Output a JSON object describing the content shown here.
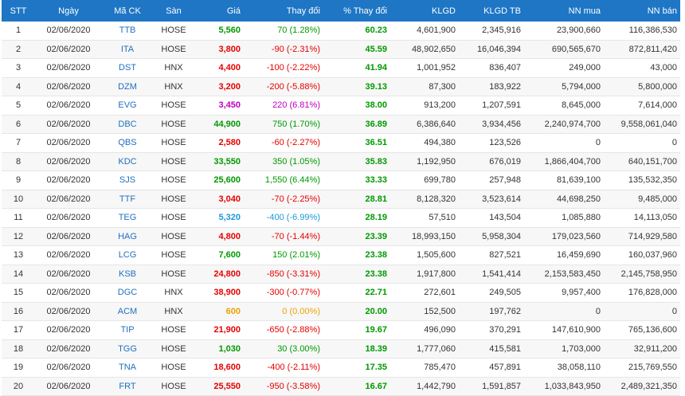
{
  "headers": {
    "stt": "STT",
    "date": "Ngày",
    "symbol": "Mã CK",
    "exchange": "Sàn",
    "price": "Giá",
    "change": "Thay đổi",
    "pct_change": "% Thay đổi",
    "volume": "KLGD",
    "avg_volume": "KLGD TB",
    "foreign_buy": "NN mua",
    "foreign_sell": "NN bán"
  },
  "colors": {
    "header_bg": "#1e76c5",
    "up": "#009900",
    "down": "#e60000",
    "reference": "#f0a100",
    "ceiling": "#c000c0",
    "floor": "#1a9ad6",
    "symbol_link": "#1f6fbf"
  },
  "rows": [
    {
      "stt": "1",
      "date": "02/06/2020",
      "symbol": "TTB",
      "exchange": "HOSE",
      "price": "5,560",
      "change": "70 (1.28%)",
      "trend": "up",
      "pct": "60.23",
      "volume": "4,601,900",
      "avg_volume": "2,345,916",
      "foreign_buy": "23,900,660",
      "foreign_sell": "116,386,530"
    },
    {
      "stt": "2",
      "date": "02/06/2020",
      "symbol": "ITA",
      "exchange": "HOSE",
      "price": "3,800",
      "change": "-90 (-2.31%)",
      "trend": "down",
      "pct": "45.59",
      "volume": "48,902,650",
      "avg_volume": "16,046,394",
      "foreign_buy": "690,565,670",
      "foreign_sell": "872,811,420"
    },
    {
      "stt": "3",
      "date": "02/06/2020",
      "symbol": "DST",
      "exchange": "HNX",
      "price": "4,400",
      "change": "-100 (-2.22%)",
      "trend": "down",
      "pct": "41.94",
      "volume": "1,001,952",
      "avg_volume": "836,407",
      "foreign_buy": "249,000",
      "foreign_sell": "43,000"
    },
    {
      "stt": "4",
      "date": "02/06/2020",
      "symbol": "DZM",
      "exchange": "HNX",
      "price": "3,200",
      "change": "-200 (-5.88%)",
      "trend": "down",
      "pct": "39.13",
      "volume": "87,300",
      "avg_volume": "183,922",
      "foreign_buy": "5,794,000",
      "foreign_sell": "5,800,000"
    },
    {
      "stt": "5",
      "date": "02/06/2020",
      "symbol": "EVG",
      "exchange": "HOSE",
      "price": "3,450",
      "change": "220 (6.81%)",
      "trend": "ceil",
      "pct": "38.00",
      "volume": "913,200",
      "avg_volume": "1,207,591",
      "foreign_buy": "8,645,000",
      "foreign_sell": "7,614,000"
    },
    {
      "stt": "6",
      "date": "02/06/2020",
      "symbol": "DBC",
      "exchange": "HOSE",
      "price": "44,900",
      "change": "750 (1.70%)",
      "trend": "up",
      "pct": "36.89",
      "volume": "6,386,640",
      "avg_volume": "3,934,456",
      "foreign_buy": "2,240,974,700",
      "foreign_sell": "9,558,061,040"
    },
    {
      "stt": "7",
      "date": "02/06/2020",
      "symbol": "QBS",
      "exchange": "HOSE",
      "price": "2,580",
      "change": "-60 (-2.27%)",
      "trend": "down",
      "pct": "36.51",
      "volume": "494,380",
      "avg_volume": "123,526",
      "foreign_buy": "0",
      "foreign_sell": "0"
    },
    {
      "stt": "8",
      "date": "02/06/2020",
      "symbol": "KDC",
      "exchange": "HOSE",
      "price": "33,550",
      "change": "350 (1.05%)",
      "trend": "up",
      "pct": "35.83",
      "volume": "1,192,950",
      "avg_volume": "676,019",
      "foreign_buy": "1,866,404,700",
      "foreign_sell": "640,151,700"
    },
    {
      "stt": "9",
      "date": "02/06/2020",
      "symbol": "SJS",
      "exchange": "HOSE",
      "price": "25,600",
      "change": "1,550 (6.44%)",
      "trend": "up",
      "pct": "33.33",
      "volume": "699,780",
      "avg_volume": "257,948",
      "foreign_buy": "81,639,100",
      "foreign_sell": "135,532,350"
    },
    {
      "stt": "10",
      "date": "02/06/2020",
      "symbol": "TTF",
      "exchange": "HOSE",
      "price": "3,040",
      "change": "-70 (-2.25%)",
      "trend": "down",
      "pct": "28.81",
      "volume": "8,128,320",
      "avg_volume": "3,523,614",
      "foreign_buy": "44,698,250",
      "foreign_sell": "9,485,000"
    },
    {
      "stt": "11",
      "date": "02/06/2020",
      "symbol": "TEG",
      "exchange": "HOSE",
      "price": "5,320",
      "change": "-400 (-6.99%)",
      "trend": "floor",
      "pct": "28.19",
      "volume": "57,510",
      "avg_volume": "143,504",
      "foreign_buy": "1,085,880",
      "foreign_sell": "14,113,050"
    },
    {
      "stt": "12",
      "date": "02/06/2020",
      "symbol": "HAG",
      "exchange": "HOSE",
      "price": "4,800",
      "change": "-70 (-1.44%)",
      "trend": "down",
      "pct": "23.39",
      "volume": "18,993,150",
      "avg_volume": "5,958,304",
      "foreign_buy": "179,023,560",
      "foreign_sell": "714,929,580"
    },
    {
      "stt": "13",
      "date": "02/06/2020",
      "symbol": "LCG",
      "exchange": "HOSE",
      "price": "7,600",
      "change": "150 (2.01%)",
      "trend": "up",
      "pct": "23.38",
      "volume": "1,505,600",
      "avg_volume": "827,521",
      "foreign_buy": "16,459,690",
      "foreign_sell": "160,037,960"
    },
    {
      "stt": "14",
      "date": "02/06/2020",
      "symbol": "KSB",
      "exchange": "HOSE",
      "price": "24,800",
      "change": "-850 (-3.31%)",
      "trend": "down",
      "pct": "23.38",
      "volume": "1,917,800",
      "avg_volume": "1,541,414",
      "foreign_buy": "2,153,583,450",
      "foreign_sell": "2,145,758,950"
    },
    {
      "stt": "15",
      "date": "02/06/2020",
      "symbol": "DGC",
      "exchange": "HNX",
      "price": "38,900",
      "change": "-300 (-0.77%)",
      "trend": "down",
      "pct": "22.71",
      "volume": "272,601",
      "avg_volume": "249,505",
      "foreign_buy": "9,957,400",
      "foreign_sell": "176,828,000"
    },
    {
      "stt": "16",
      "date": "02/06/2020",
      "symbol": "ACM",
      "exchange": "HNX",
      "price": "600",
      "change": "0 (0.00%)",
      "trend": "ref",
      "pct": "20.00",
      "volume": "152,500",
      "avg_volume": "197,762",
      "foreign_buy": "0",
      "foreign_sell": "0"
    },
    {
      "stt": "17",
      "date": "02/06/2020",
      "symbol": "TIP",
      "exchange": "HOSE",
      "price": "21,900",
      "change": "-650 (-2.88%)",
      "trend": "down",
      "pct": "19.67",
      "volume": "496,090",
      "avg_volume": "370,291",
      "foreign_buy": "147,610,900",
      "foreign_sell": "765,136,600"
    },
    {
      "stt": "18",
      "date": "02/06/2020",
      "symbol": "TGG",
      "exchange": "HOSE",
      "price": "1,030",
      "change": "30 (3.00%)",
      "trend": "up",
      "pct": "18.39",
      "volume": "1,777,060",
      "avg_volume": "415,581",
      "foreign_buy": "1,703,000",
      "foreign_sell": "32,911,200"
    },
    {
      "stt": "19",
      "date": "02/06/2020",
      "symbol": "TNA",
      "exchange": "HOSE",
      "price": "18,600",
      "change": "-400 (-2.11%)",
      "trend": "down",
      "pct": "17.35",
      "volume": "785,470",
      "avg_volume": "457,891",
      "foreign_buy": "38,058,110",
      "foreign_sell": "215,769,550"
    },
    {
      "stt": "20",
      "date": "02/06/2020",
      "symbol": "FRT",
      "exchange": "HOSE",
      "price": "25,550",
      "change": "-950 (-3.58%)",
      "trend": "down",
      "pct": "16.67",
      "volume": "1,442,790",
      "avg_volume": "1,591,857",
      "foreign_buy": "1,033,843,950",
      "foreign_sell": "2,489,321,350"
    }
  ]
}
